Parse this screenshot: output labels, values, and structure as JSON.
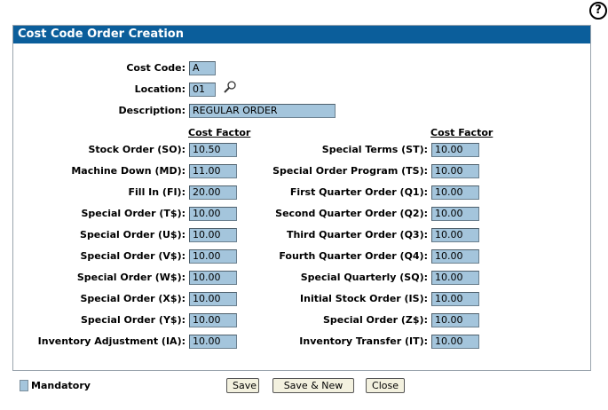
{
  "page": {
    "help_glyph": "?"
  },
  "panel": {
    "title": "Cost Code Order Creation"
  },
  "header_fields": {
    "cost_code": {
      "label": "Cost Code:",
      "value": "A"
    },
    "location": {
      "label": "Location:",
      "value": "01"
    },
    "description": {
      "label": "Description:",
      "value": "REGULAR ORDER"
    }
  },
  "columns": {
    "left_header": "Cost Factor",
    "right_header": "Cost Factor"
  },
  "left_rows": [
    {
      "label": "Stock Order (SO):",
      "value": "10.50"
    },
    {
      "label": "Machine Down (MD):",
      "value": "11.00"
    },
    {
      "label": "Fill In (FI):",
      "value": "20.00"
    },
    {
      "label": "Special Order (T$):",
      "value": "10.00"
    },
    {
      "label": "Special Order (U$):",
      "value": "10.00"
    },
    {
      "label": "Special Order (V$):",
      "value": "10.00"
    },
    {
      "label": "Special Order (W$):",
      "value": "10.00"
    },
    {
      "label": "Special Order (X$):",
      "value": "10.00"
    },
    {
      "label": "Special Order (Y$):",
      "value": "10.00"
    },
    {
      "label": "Inventory Adjustment (IA):",
      "value": "10.00"
    }
  ],
  "right_rows": [
    {
      "label": "Special Terms (ST):",
      "value": "10.00"
    },
    {
      "label": "Special Order Program (TS):",
      "value": "10.00"
    },
    {
      "label": "First Quarter Order (Q1):",
      "value": "10.00"
    },
    {
      "label": "Second Quarter Order (Q2):",
      "value": "10.00"
    },
    {
      "label": "Third Quarter Order (Q3):",
      "value": "10.00"
    },
    {
      "label": "Fourth Quarter Order (Q4):",
      "value": "10.00"
    },
    {
      "label": "Special Quarterly (SQ):",
      "value": "10.00"
    },
    {
      "label": "Initial Stock Order (IS):",
      "value": "10.00"
    },
    {
      "label": "Special Order (Z$):",
      "value": "10.00"
    },
    {
      "label": "Inventory Transfer (IT):",
      "value": "10.00"
    }
  ],
  "footer": {
    "legend_label": "Mandatory",
    "save_label": "Save",
    "save_new_label": "Save & New",
    "close_label": "Close"
  },
  "icons": {
    "lookup": "magnifier-icon",
    "help": "help-icon"
  },
  "colors": {
    "header_bg": "#0b5e9b",
    "mandatory_field": "#a4c5dc"
  }
}
